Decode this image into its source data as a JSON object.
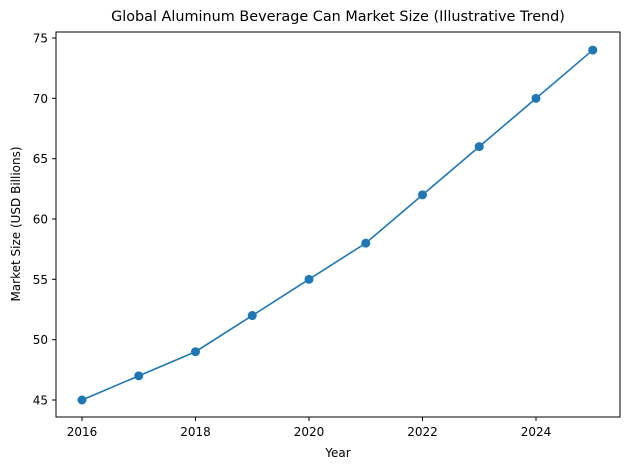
{
  "chart_data": {
    "type": "line",
    "title": "Global Aluminum Beverage Can Market Size (Illustrative Trend)",
    "xlabel": "Year",
    "ylabel": "Market Size (USD Billions)",
    "x": [
      2016,
      2017,
      2018,
      2019,
      2020,
      2021,
      2022,
      2023,
      2024,
      2025
    ],
    "series": [
      {
        "name": "Market Size",
        "values": [
          45,
          47,
          49,
          52,
          55,
          58,
          62,
          66,
          70,
          74
        ],
        "color": "#1f77b4",
        "marker": "circle"
      }
    ],
    "xticks": [
      "2016",
      "2018",
      "2020",
      "2022",
      "2024"
    ],
    "yticks": [
      "45",
      "50",
      "55",
      "60",
      "65",
      "70",
      "75"
    ],
    "xlim": [
      2015.55,
      2025.45
    ],
    "ylim": [
      43.55,
      75.45
    ],
    "grid": false,
    "legend": null
  }
}
